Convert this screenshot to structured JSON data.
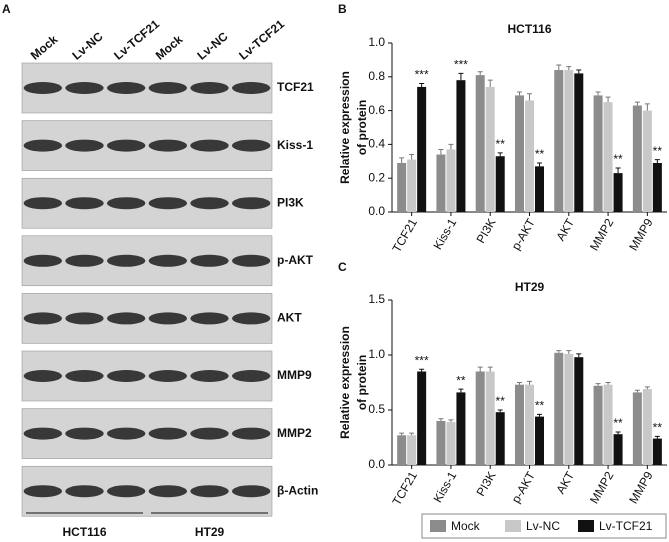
{
  "blot": {
    "panel": "A",
    "columns": [
      "Mock",
      "Lv-NC",
      "Lv-TCF21",
      "Mock",
      "Lv-NC",
      "Lv-TCF21"
    ],
    "rows": [
      "TCF21",
      "Kiss-1",
      "PI3K",
      "p-AKT",
      "AKT",
      "MMP9",
      "MMP2",
      "β-Actin"
    ],
    "groups": [
      "HCT116",
      "HT29"
    ]
  },
  "chart_data": [
    {
      "type": "bar",
      "panel": "B",
      "title": "HCT116",
      "ylabel": [
        "Relative expression",
        "of protein"
      ],
      "categories": [
        "TCF21",
        "Kiss-1",
        "PI3K",
        "p-AKT",
        "AKT",
        "MMP2",
        "MMP9"
      ],
      "series": [
        {
          "name": "Mock",
          "color": "#8c8c8c",
          "values": [
            0.29,
            0.34,
            0.81,
            0.69,
            0.84,
            0.69,
            0.63
          ],
          "errors": [
            0.03,
            0.03,
            0.02,
            0.02,
            0.03,
            0.02,
            0.02
          ]
        },
        {
          "name": "Lv-NC",
          "color": "#c8c8c8",
          "values": [
            0.31,
            0.37,
            0.74,
            0.66,
            0.84,
            0.65,
            0.6
          ],
          "errors": [
            0.03,
            0.03,
            0.04,
            0.04,
            0.02,
            0.03,
            0.04
          ]
        },
        {
          "name": "Lv-TCF21",
          "color": "#111111",
          "values": [
            0.74,
            0.78,
            0.33,
            0.27,
            0.82,
            0.23,
            0.29
          ],
          "errors": [
            0.02,
            0.04,
            0.02,
            0.02,
            0.02,
            0.03,
            0.02
          ]
        }
      ],
      "significance": [
        "***",
        "***",
        "**",
        "**",
        null,
        "**",
        "**"
      ],
      "ylim": [
        0,
        1.0
      ],
      "yticks": [
        {
          "value": 0,
          "label": "0.0"
        },
        0.2,
        0.4,
        0.6,
        0.8,
        {
          "value": 1,
          "label": "1.0"
        }
      ]
    },
    {
      "type": "bar",
      "panel": "C",
      "title": "HT29",
      "ylabel": [
        "Relative expression",
        "of protein"
      ],
      "categories": [
        "TCF21",
        "Kiss-1",
        "PI3K",
        "p-AKT",
        "AKT",
        "MMP2",
        "MMP9"
      ],
      "series": [
        {
          "name": "Mock",
          "color": "#8c8c8c",
          "values": [
            0.27,
            0.4,
            0.85,
            0.73,
            1.02,
            0.72,
            0.66
          ],
          "errors": [
            0.02,
            0.02,
            0.04,
            0.02,
            0.02,
            0.02,
            0.02
          ]
        },
        {
          "name": "Lv-NC",
          "color": "#c8c8c8",
          "values": [
            0.27,
            0.39,
            0.85,
            0.73,
            1.01,
            0.73,
            0.69
          ],
          "errors": [
            0.02,
            0.02,
            0.04,
            0.03,
            0.03,
            0.02,
            0.02
          ]
        },
        {
          "name": "Lv-TCF21",
          "color": "#111111",
          "values": [
            0.85,
            0.66,
            0.48,
            0.44,
            0.98,
            0.28,
            0.24
          ],
          "errors": [
            0.02,
            0.03,
            0.02,
            0.02,
            0.03,
            0.02,
            0.02
          ]
        }
      ],
      "significance": [
        "***",
        "**",
        "**",
        "**",
        null,
        "**",
        "**"
      ],
      "ylim": [
        0,
        1.5
      ],
      "yticks": [
        {
          "value": 0,
          "label": "0.0"
        },
        0.5,
        {
          "value": 1,
          "label": "1.0"
        },
        1.5
      ]
    }
  ]
}
